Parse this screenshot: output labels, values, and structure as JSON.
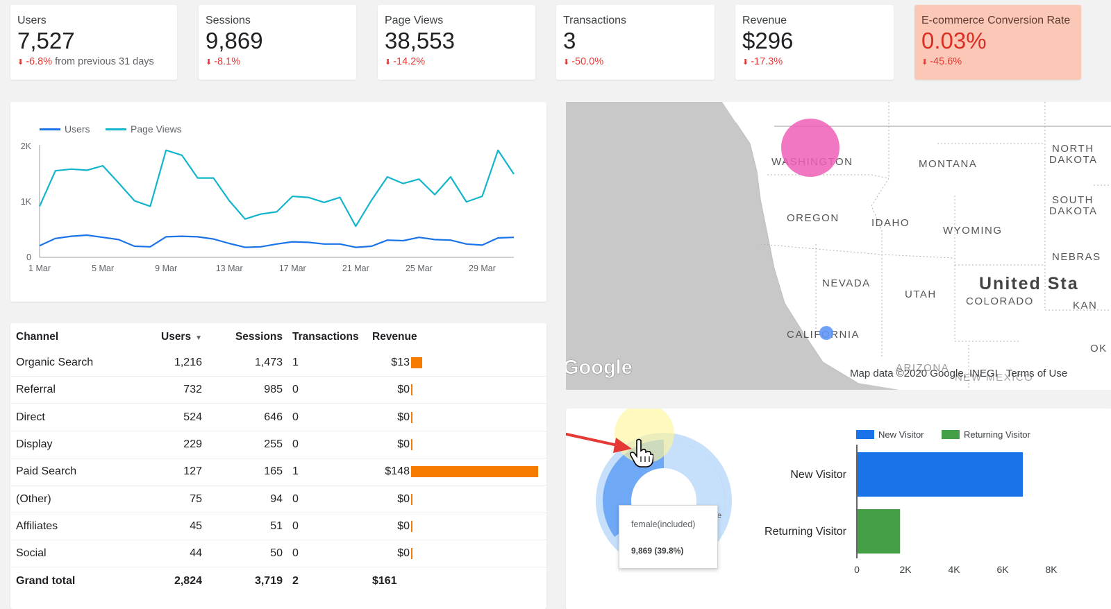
{
  "scorecards": [
    {
      "label": "Users",
      "value": "7,527",
      "delta": "-6.8%",
      "suffix": " from previous 31 days"
    },
    {
      "label": "Sessions",
      "value": "9,869",
      "delta": "-8.1%",
      "suffix": ""
    },
    {
      "label": "Page Views",
      "value": "38,553",
      "delta": "-14.2%",
      "suffix": ""
    },
    {
      "label": "Transactions",
      "value": "3",
      "delta": "-50.0%",
      "suffix": ""
    },
    {
      "label": "Revenue",
      "value": "$296",
      "delta": "-17.3%",
      "suffix": ""
    },
    {
      "label": "E-commerce Conversion Rate",
      "value": "0.03%",
      "delta": "-45.6%",
      "suffix": ""
    }
  ],
  "icons": {
    "delta_down": "down-arrow-icon",
    "cursor": "hand-pointer-icon"
  },
  "colors": {
    "users": "#1a73e8",
    "pageviews": "#12b5cb",
    "negative": "#e53935",
    "revenue_bar": "#f57c00",
    "new_visitor": "#1a73e8",
    "returning_visitor": "#43a047",
    "alert_bg": "#fbc8b8"
  },
  "chart_data": [
    {
      "type": "line",
      "x": [
        "1 Mar",
        "2 Mar",
        "3 Mar",
        "4 Mar",
        "5 Mar",
        "6 Mar",
        "7 Mar",
        "8 Mar",
        "9 Mar",
        "10 Mar",
        "11 Mar",
        "12 Mar",
        "13 Mar",
        "14 Mar",
        "15 Mar",
        "16 Mar",
        "17 Mar",
        "18 Mar",
        "19 Mar",
        "20 Mar",
        "21 Mar",
        "22 Mar",
        "23 Mar",
        "24 Mar",
        "25 Mar",
        "26 Mar",
        "27 Mar",
        "28 Mar",
        "29 Mar",
        "30 Mar",
        "31 Mar"
      ],
      "x_ticks": [
        "1 Mar",
        "5 Mar",
        "9 Mar",
        "13 Mar",
        "17 Mar",
        "21 Mar",
        "25 Mar",
        "29 Mar"
      ],
      "y_ticks": [
        "0",
        "1K",
        "2K"
      ],
      "ylim": [
        0,
        2000
      ],
      "legend_position": "top-left",
      "series": [
        {
          "name": "Users",
          "values": [
            210,
            340,
            380,
            400,
            360,
            320,
            200,
            190,
            370,
            380,
            370,
            330,
            250,
            180,
            190,
            240,
            280,
            270,
            240,
            240,
            180,
            200,
            310,
            300,
            360,
            320,
            310,
            240,
            220,
            350,
            360
          ]
        },
        {
          "name": "Page Views",
          "values": [
            920,
            1560,
            1590,
            1570,
            1650,
            1340,
            1020,
            920,
            1930,
            1840,
            1430,
            1430,
            1020,
            690,
            780,
            820,
            1100,
            1080,
            990,
            1080,
            560,
            1030,
            1450,
            1330,
            1410,
            1130,
            1450,
            1000,
            1100,
            1930,
            1500
          ]
        }
      ]
    },
    {
      "type": "bar",
      "orientation": "horizontal",
      "categories": [
        "New Visitor",
        "Returning Visitor"
      ],
      "series": [
        {
          "name": "New Visitor",
          "values": [
            6800,
            0
          ]
        },
        {
          "name": "Returning Visitor",
          "values": [
            0,
            1750
          ]
        }
      ],
      "x_ticks": [
        "0",
        "2K",
        "4K",
        "6K",
        "8K"
      ],
      "xlim": [
        0,
        8000
      ],
      "legend_position": "top"
    },
    {
      "type": "pie",
      "style": "donut",
      "slices": [
        {
          "name": "female(included)",
          "value": 9869,
          "percent": 39.8
        }
      ]
    }
  ],
  "table": {
    "headers": {
      "channel": "Channel",
      "users": "Users",
      "sessions": "Sessions",
      "transactions": "Transactions",
      "revenue": "Revenue"
    },
    "rows": [
      {
        "channel": "Organic Search",
        "users": "1,216",
        "sessions": "1,473",
        "transactions": "1",
        "revenue": "$13",
        "revenue_value": 13
      },
      {
        "channel": "Referral",
        "users": "732",
        "sessions": "985",
        "transactions": "0",
        "revenue": "$0",
        "revenue_value": 0
      },
      {
        "channel": "Direct",
        "users": "524",
        "sessions": "646",
        "transactions": "0",
        "revenue": "$0",
        "revenue_value": 0
      },
      {
        "channel": "Display",
        "users": "229",
        "sessions": "255",
        "transactions": "0",
        "revenue": "$0",
        "revenue_value": 0
      },
      {
        "channel": "Paid Search",
        "users": "127",
        "sessions": "165",
        "transactions": "1",
        "revenue": "$148",
        "revenue_value": 148
      },
      {
        "channel": "(Other)",
        "users": "75",
        "sessions": "94",
        "transactions": "0",
        "revenue": "$0",
        "revenue_value": 0
      },
      {
        "channel": "Affiliates",
        "users": "45",
        "sessions": "51",
        "transactions": "0",
        "revenue": "$0",
        "revenue_value": 0
      },
      {
        "channel": "Social",
        "users": "44",
        "sessions": "50",
        "transactions": "0",
        "revenue": "$0",
        "revenue_value": 0
      }
    ],
    "total": {
      "channel": "Grand total",
      "users": "2,824",
      "sessions": "3,719",
      "transactions": "2",
      "revenue": "$161"
    }
  },
  "map": {
    "states": [
      "WASHINGTON",
      "MONTANA",
      "NORTH DAKOTA",
      "OREGON",
      "IDAHO",
      "WYOMING",
      "SOUTH DAKOTA",
      "NEBRASKA",
      "NEVADA",
      "UTAH",
      "COLORADO",
      "CALIFORNIA",
      "ARIZONA",
      "KANSAS",
      "OKLAHOMA",
      "NEW MEXICO"
    ],
    "state_labels_visible": [
      "WASHINGTON",
      "MONTANA",
      "NORTH",
      "DAKOTA",
      "OREGON",
      "IDAHO",
      "WYOMING",
      "SOUTH",
      "DAKOTA",
      "NEBRAS",
      "NEVADA",
      "UTAH",
      "COLORADO",
      "CALIFORNIA",
      "ARIZONA",
      "KAN",
      "OK",
      "NEW MEXICO"
    ],
    "country_label": "United Sta",
    "logo": "Google",
    "attribution": "Map data ©2020 Google, INEGI",
    "terms": "Terms of Use",
    "bubbles": [
      {
        "region": "WASHINGTON",
        "color": "#ee5fb8"
      },
      {
        "region": "CALIFORNIA",
        "color": "#5e97f6"
      }
    ]
  },
  "visitor": {
    "legend": [
      "New Visitor",
      "Returning Visitor"
    ],
    "tooltip": {
      "label": "female(included)",
      "value": "9,869 (39.8%)"
    },
    "donut_partial_label": "le"
  }
}
